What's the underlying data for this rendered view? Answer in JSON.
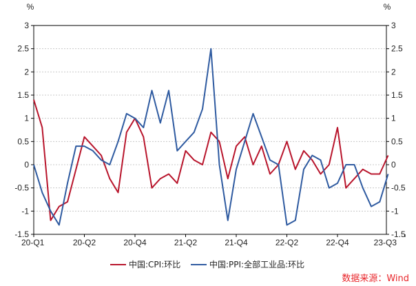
{
  "chart_data": {
    "type": "line",
    "y_unit_left": "%",
    "y_unit_right": "%",
    "ylim": [
      -1.5,
      3
    ],
    "yticks": [
      3,
      2.5,
      2,
      1.5,
      1,
      0.5,
      0,
      -0.5,
      -1,
      -1.5
    ],
    "ytick_labels": [
      "3",
      "2.5",
      "2",
      "1.5",
      "1",
      "0.5",
      "0",
      "-0.5",
      "-1",
      "-1.5"
    ],
    "x_tick_labels": [
      "20-Q1",
      "20-Q2",
      "20-Q4",
      "21-Q2",
      "21-Q4",
      "22-Q2",
      "22-Q4",
      "23-Q3"
    ],
    "x_tick_month_index": [
      0,
      6,
      12,
      18,
      24,
      30,
      36,
      44
    ],
    "grid": true,
    "legend_position": "bottom",
    "series": [
      {
        "name": "中国:CPI:环比",
        "color": "#b8142b",
        "values": [
          1.4,
          0.8,
          -1.2,
          -0.9,
          -0.8,
          -0.1,
          0.6,
          0.4,
          0.2,
          -0.3,
          -0.6,
          0.7,
          1.0,
          0.6,
          -0.5,
          -0.3,
          -0.2,
          -0.4,
          0.3,
          0.1,
          0.0,
          0.7,
          0.5,
          -0.3,
          0.4,
          0.6,
          0.0,
          0.4,
          -0.2,
          0.0,
          0.5,
          -0.1,
          0.3,
          0.1,
          -0.2,
          0.0,
          0.8,
          -0.5,
          -0.3,
          -0.1,
          -0.2,
          -0.2,
          0.2
        ]
      },
      {
        "name": "中国:PPI:全部工业品:环比",
        "color": "#2e5aa0",
        "values": [
          0.0,
          -0.6,
          -1.0,
          -1.3,
          -0.4,
          0.4,
          0.4,
          0.3,
          0.1,
          0.0,
          0.5,
          1.1,
          1.0,
          0.8,
          1.6,
          0.9,
          1.6,
          0.3,
          0.5,
          0.7,
          1.2,
          2.5,
          0.0,
          -1.2,
          -0.1,
          0.5,
          1.1,
          0.6,
          0.1,
          0.0,
          -1.3,
          -1.2,
          -0.1,
          0.2,
          0.1,
          -0.5,
          -0.4,
          0.0,
          0.0,
          -0.5,
          -0.9,
          -0.8,
          -0.2
        ]
      }
    ]
  },
  "legend": {
    "cpi_label": "中国:CPI:环比",
    "ppi_label": "中国:PPI:全部工业品:环比"
  },
  "source_note": "数据来源：Wind"
}
